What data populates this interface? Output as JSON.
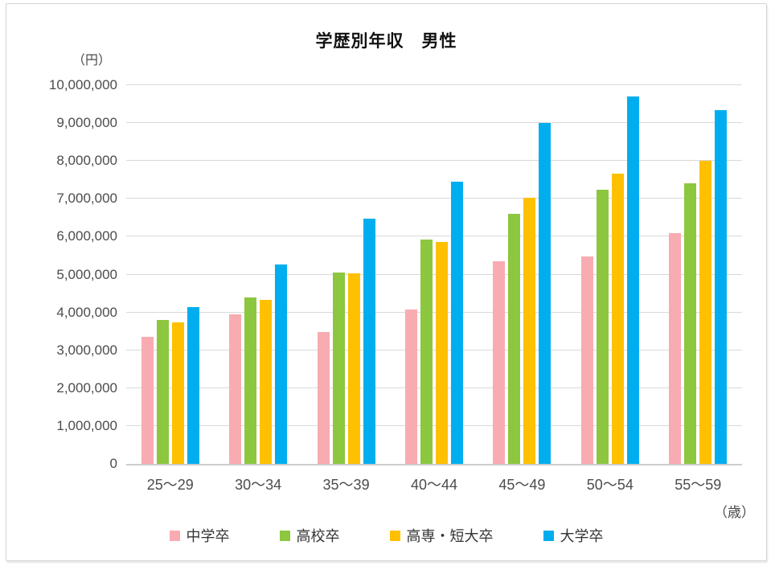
{
  "chart_data": {
    "type": "bar",
    "title": "学歴別年収　男性",
    "unit_label": "（円）",
    "axis_unit_label": "（歳）",
    "categories": [
      "25～29",
      "30～34",
      "35～39",
      "40～44",
      "45～49",
      "50～54",
      "55～59"
    ],
    "series": [
      {
        "name": "中学卒",
        "color": "#F9ABB2",
        "values": [
          3350000,
          3950000,
          3480000,
          4080000,
          5350000,
          5480000,
          6100000
        ]
      },
      {
        "name": "高校卒",
        "color": "#8DC63F",
        "values": [
          3800000,
          4400000,
          5050000,
          5930000,
          6600000,
          7250000,
          7400000
        ]
      },
      {
        "name": "高専・短大卒",
        "color": "#FFC000",
        "values": [
          3730000,
          4330000,
          5030000,
          5850000,
          7030000,
          7670000,
          8000000
        ]
      },
      {
        "name": "大学卒",
        "color": "#00AEEF",
        "values": [
          4150000,
          5270000,
          6480000,
          7450000,
          9000000,
          9700000,
          9350000
        ]
      }
    ],
    "ylim": [
      0,
      10000000
    ],
    "ytick_interval": 1000000,
    "ytick_labels": [
      "0",
      "1,000,000",
      "2,000,000",
      "3,000,000",
      "4,000,000",
      "5,000,000",
      "6,000,000",
      "7,000,000",
      "8,000,000",
      "9,000,000",
      "10,000,000"
    ],
    "grid": true,
    "gridline_color": "#d9d9d9",
    "legend_position": "bottom"
  }
}
